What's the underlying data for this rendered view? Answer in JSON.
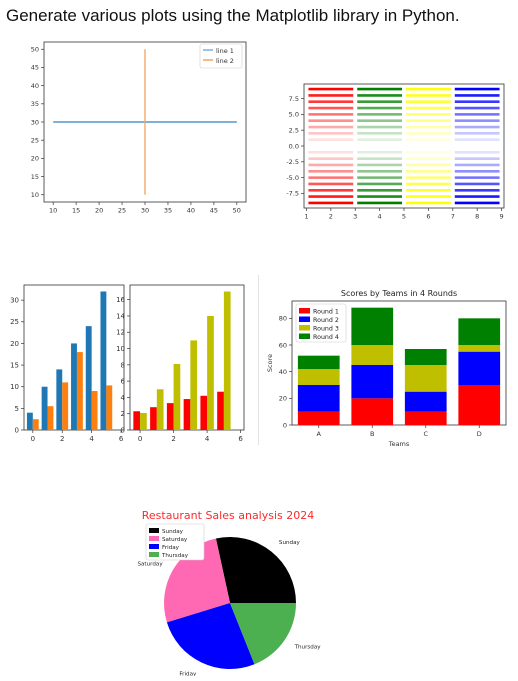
{
  "heading": "Generate various plots using the Matplotlib library in Python.",
  "chart_data": [
    {
      "type": "line",
      "series": [
        {
          "name": "line 1",
          "x": [
            10,
            50
          ],
          "y": [
            30,
            30
          ],
          "color": "#7fb0d8"
        },
        {
          "name": "line 2",
          "x": [
            30,
            30
          ],
          "y": [
            10,
            50
          ],
          "color": "#f5a35a"
        }
      ],
      "xticks": [
        10,
        15,
        20,
        25,
        30,
        35,
        40,
        45,
        50
      ],
      "yticks": [
        10,
        15,
        20,
        25,
        30,
        35,
        40,
        45,
        50
      ],
      "xlim": [
        8,
        52
      ],
      "ylim": [
        8,
        52
      ],
      "legend": "top-right",
      "grid": false
    },
    {
      "type": "line",
      "note_style": "horizontal line segments, alpha varies",
      "segments": [
        {
          "color": "#ff0000",
          "x": [
            1,
            3
          ]
        },
        {
          "color": "#008000",
          "x": [
            3,
            5
          ]
        },
        {
          "color": "#ffff00",
          "x": [
            5,
            7
          ]
        },
        {
          "color": "#0000ff",
          "x": [
            7,
            9
          ]
        }
      ],
      "y_levels": [
        -9,
        -8,
        -7,
        -6,
        -5,
        -4,
        -3,
        -2,
        -1,
        1,
        2,
        3,
        4,
        5,
        6,
        7,
        8,
        9
      ],
      "xticks": [
        1,
        2,
        3,
        4,
        5,
        6,
        7,
        8,
        9
      ],
      "yticks": [
        -7.5,
        -5.0,
        -2.5,
        0.0,
        2.5,
        5.0,
        7.5
      ],
      "xlim": [
        0.9,
        9.1
      ],
      "ylim": [
        -9.8,
        9.8
      ]
    },
    {
      "type": "bar",
      "x": [
        0,
        1,
        2,
        3,
        4,
        5
      ],
      "series": [
        {
          "values": [
            4,
            10,
            14,
            20,
            24,
            32
          ],
          "color": "#1f77b4"
        },
        {
          "values": [
            2.5,
            5.5,
            11,
            18,
            9,
            10.3
          ],
          "color": "#ff7f0e"
        }
      ],
      "xticks": [
        0,
        2,
        4,
        6
      ],
      "yticks": [
        0,
        5,
        10,
        15,
        20,
        25,
        30
      ],
      "xlim": [
        -0.6,
        6.2
      ],
      "ylim": [
        0,
        33.5
      ]
    },
    {
      "type": "bar",
      "x": [
        0,
        1,
        2,
        3,
        4,
        5
      ],
      "series": [
        {
          "values": [
            2.3,
            2.8,
            3.3,
            3.8,
            4.2,
            4.7
          ],
          "color": "#ff0000"
        },
        {
          "values": [
            2.1,
            5.0,
            8.1,
            11.0,
            14.0,
            17.0
          ],
          "color": "#bfbf00"
        }
      ],
      "xticks": [
        0,
        2,
        4,
        6
      ],
      "yticks": [
        0,
        2,
        4,
        6,
        8,
        10,
        12,
        14,
        16
      ],
      "xlim": [
        -0.6,
        6.2
      ],
      "ylim": [
        0,
        17.8
      ]
    },
    {
      "type": "bar",
      "stacked": true,
      "title": "Scores by Teams in 4 Rounds",
      "xlabel": "Teams",
      "ylabel": "Score",
      "categories": [
        "A",
        "B",
        "C",
        "D"
      ],
      "series": [
        {
          "name": "Round 1",
          "values": [
            10,
            20,
            10,
            30
          ],
          "color": "#ff0000"
        },
        {
          "name": "Round 2",
          "values": [
            20,
            25,
            15,
            25
          ],
          "color": "#0000ff"
        },
        {
          "name": "Round 3",
          "values": [
            12,
            15,
            20,
            5
          ],
          "color": "#bfbf00"
        },
        {
          "name": "Round 4",
          "values": [
            10,
            28,
            12,
            20
          ],
          "color": "#008000"
        }
      ],
      "yticks": [
        0,
        20,
        40,
        60,
        80
      ],
      "ylim": [
        0,
        93
      ],
      "legend": "top-left"
    },
    {
      "type": "pie",
      "title": "Restaurant Sales analysis 2024",
      "title_color": "#ff2a2a",
      "labels": [
        "Sunday",
        "Saturday",
        "Friday",
        "Thursday"
      ],
      "values": [
        27,
        25,
        25,
        18
      ],
      "colors": [
        "#000000",
        "#ff69b4",
        "#0000ff",
        "#4caf50"
      ],
      "startangle": 0,
      "legend": "top-left"
    }
  ]
}
